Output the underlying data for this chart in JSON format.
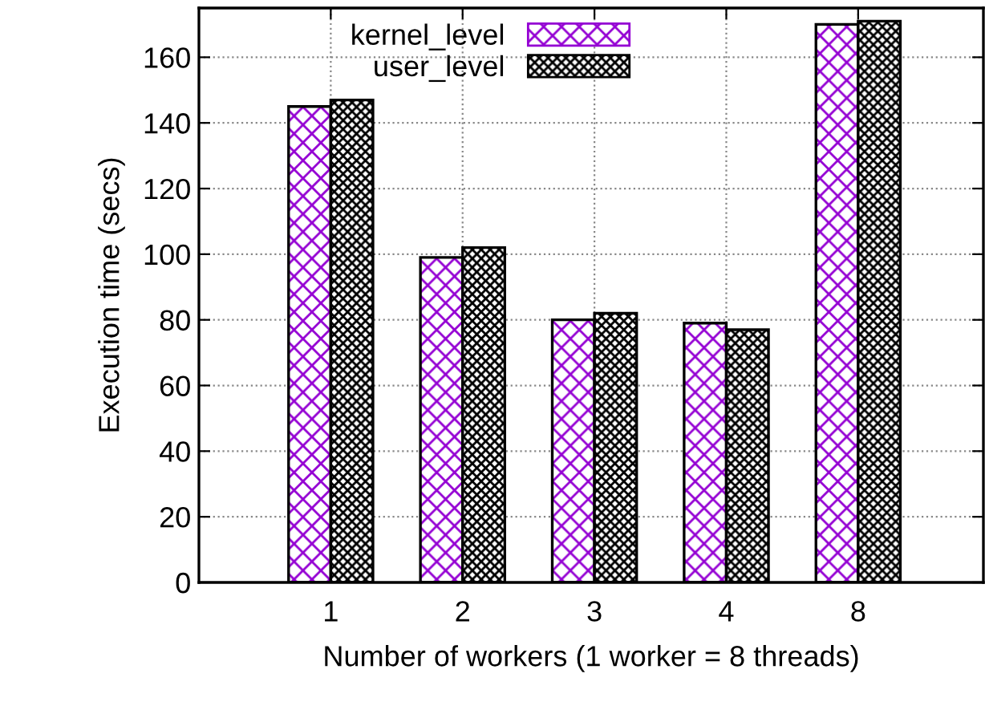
{
  "chart_data": {
    "type": "bar",
    "xlabel": "Number of workers (1 worker = 8 threads)",
    "ylabel": "Execution time (secs)",
    "categories": [
      "1",
      "2",
      "3",
      "4",
      "8"
    ],
    "series": [
      {
        "name": "kernel_level",
        "color": "#9400d3",
        "values": [
          145,
          99,
          80,
          79,
          170
        ]
      },
      {
        "name": "user_level",
        "color": "#000000",
        "values": [
          147,
          102,
          82,
          77,
          171
        ]
      }
    ],
    "ylim": [
      0,
      175
    ],
    "yticks": [
      0,
      20,
      40,
      60,
      80,
      100,
      120,
      140,
      160
    ],
    "grid": true,
    "legend": "top"
  }
}
